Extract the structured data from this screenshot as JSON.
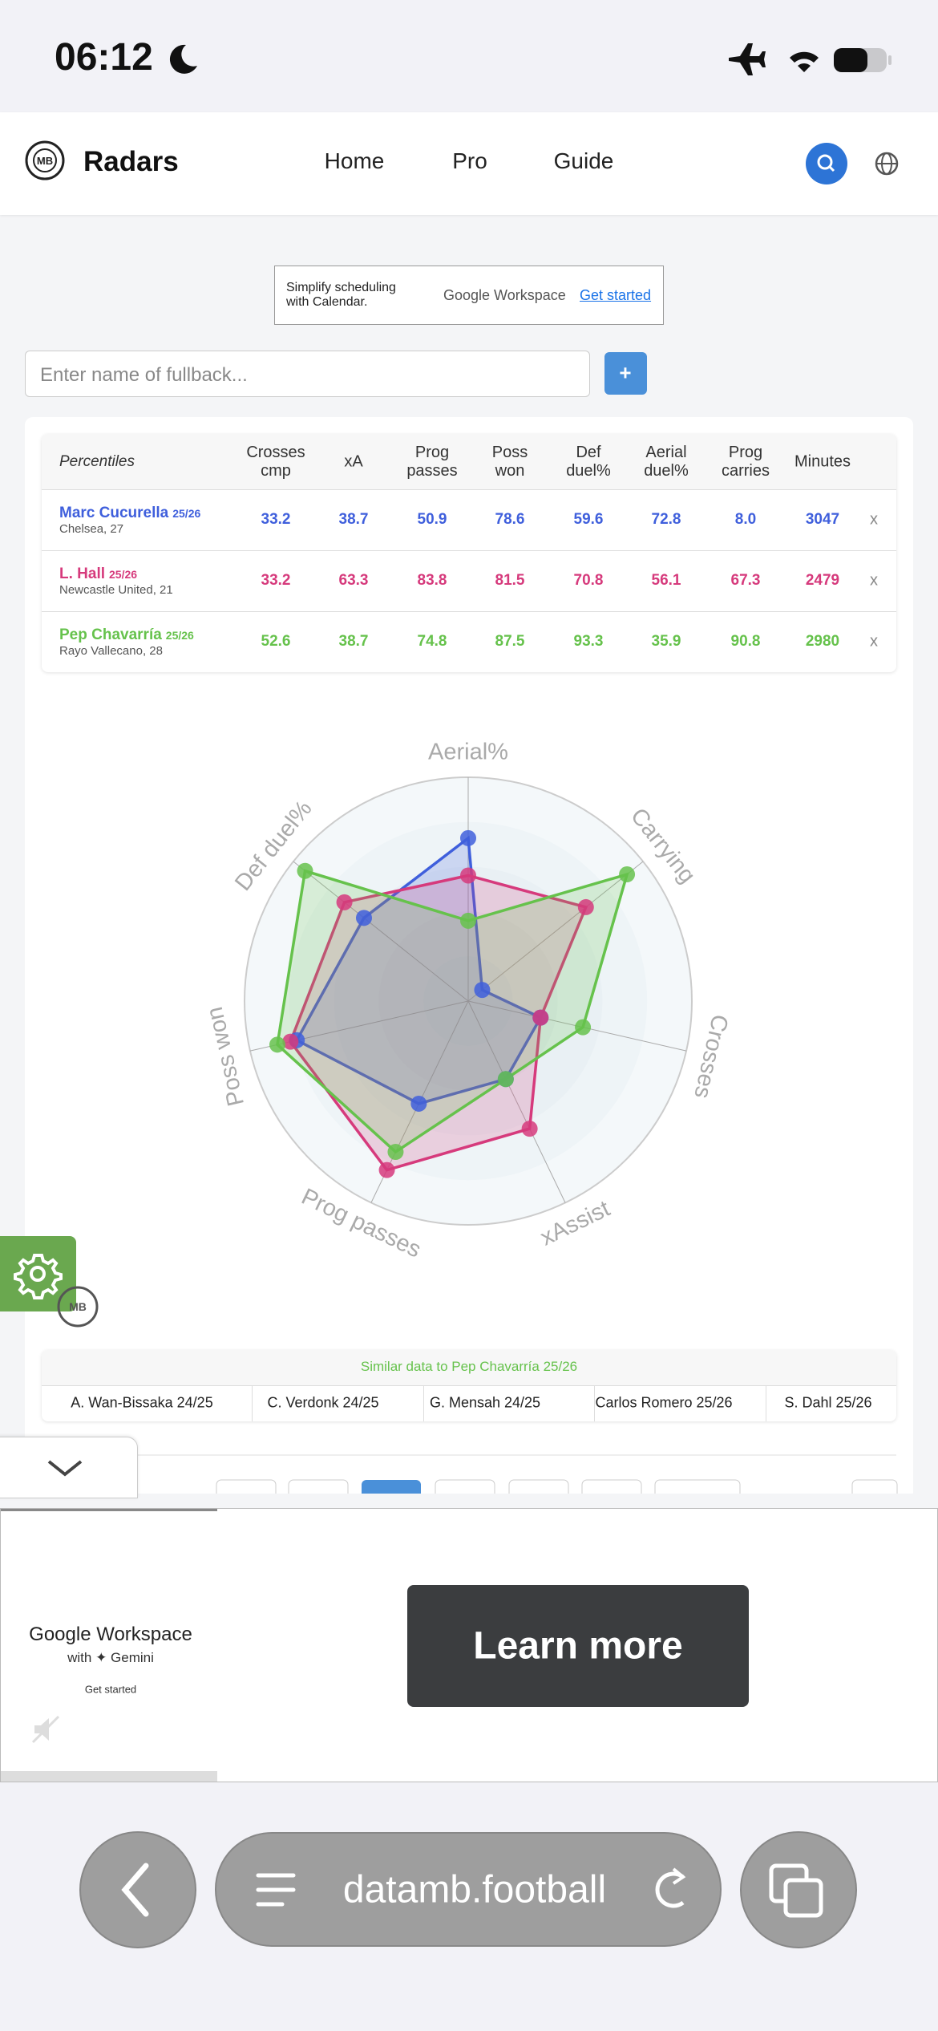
{
  "status_bar": {
    "time": "06:12"
  },
  "nav": {
    "brand": "Radars",
    "links": [
      "Home",
      "Pro",
      "Guide"
    ]
  },
  "ad_banner": {
    "headline": "Simplify scheduling with Calendar.",
    "brand": "Google Workspace",
    "cta": "Get started"
  },
  "search": {
    "placeholder": "Enter name of fullback...",
    "button": "+"
  },
  "table": {
    "header": [
      "Percentiles",
      "Crosses cmp",
      "xA",
      "Prog passes",
      "Poss won",
      "Def duel%",
      "Aerial duel%",
      "Prog carries",
      "Minutes"
    ],
    "rows": [
      {
        "name": "Marc Cucurella",
        "season": "25/26",
        "info": "Chelsea, 27",
        "color": "#3f5fdc",
        "values": [
          33.2,
          38.7,
          50.9,
          78.6,
          59.6,
          72.8,
          {
            "value": 8,
            "label": "8.0"
          },
          3047
        ],
        "remove": "x"
      },
      {
        "name": "L. Hall",
        "season": "25/26",
        "info": "Newcastle United, 21",
        "color": "#d63a7c",
        "values": [
          33.2,
          63.3,
          83.8,
          81.5,
          70.8,
          56.1,
          67.3,
          2479
        ],
        "remove": "x"
      },
      {
        "name": "Pep Chavarría",
        "season": "25/26",
        "info": "Rayo Vallecano, 28",
        "color": "#66c24c",
        "values": [
          52.6,
          38.7,
          74.8,
          87.5,
          93.3,
          35.9,
          90.8,
          2980
        ],
        "remove": "x"
      }
    ]
  },
  "radar": {
    "axes": [
      "Aerial%",
      "Carrying",
      "Crosses",
      "xAssist",
      "Prog passes",
      "Poss won",
      "Def duel%"
    ],
    "rlim": [
      0,
      100
    ]
  },
  "similar": {
    "title": "Similar data to Pep Chavarría 25/26",
    "players": [
      "A. Wan-Bissaka 24/25",
      "C. Verdonk 24/25",
      "G. Mensah 24/25",
      "Carlos Romero 25/26",
      "S. Dahl 25/26"
    ]
  },
  "bottom_ad": {
    "brand": "Google Workspace",
    "with": "with ✦ Gemini",
    "cta_small": "Get started",
    "button": "Learn more"
  },
  "browser": {
    "url": "datamb.football"
  }
}
